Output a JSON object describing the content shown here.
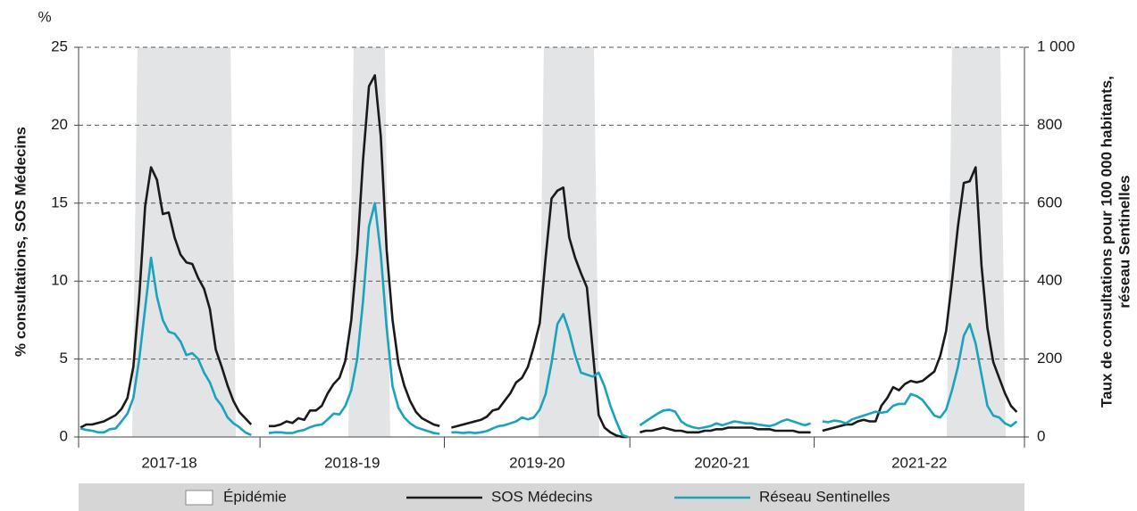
{
  "chart_data": {
    "type": "line",
    "y_unit": "%",
    "ylabel": "% consultations,  SOS Médecins",
    "y2label": [
      "Taux de consultations  pour 100 000 habitants,",
      "réseau Sentinelles"
    ],
    "ylim": [
      0,
      25
    ],
    "yticks": [
      0,
      5,
      10,
      15,
      20,
      25
    ],
    "y2lim": [
      0,
      1000
    ],
    "y2ticks": [
      0,
      200,
      400,
      600,
      800,
      {
        "value": 1000,
        "label": "1 000"
      }
    ],
    "grid": true,
    "xlim": [
      -0.3,
      160.3
    ],
    "seasons": [
      "2017-18",
      "2018-19",
      "2019-20",
      "2020-21",
      "2021-22"
    ],
    "season_edges": [
      -0.3,
      30.5,
      61.8,
      93.3,
      124.6,
      160.3
    ],
    "epidemic_label": "Épidémie",
    "epidemic_color": "#e3e4e6",
    "epidemics": [
      [
        9.7,
        25.5
      ],
      [
        46.4,
        51.7
      ],
      [
        78.7,
        87.2
      ],
      [
        148,
        156.2
      ]
    ],
    "x": [
      0,
      1,
      2,
      3,
      4,
      5,
      6,
      7,
      8,
      9,
      10,
      11,
      12,
      13,
      14,
      15,
      16,
      17,
      18,
      19,
      20,
      21,
      22,
      23,
      24,
      25,
      26,
      27,
      28,
      29,
      30,
      31,
      32,
      33,
      34,
      35,
      36,
      37,
      38,
      39,
      40,
      41,
      42,
      43,
      44,
      45,
      46,
      47,
      48,
      49,
      50,
      51,
      52,
      53,
      54,
      55,
      56,
      57,
      58,
      59,
      60,
      61,
      62,
      63,
      64,
      65,
      66,
      67,
      68,
      69,
      70,
      71,
      72,
      73,
      74,
      75,
      76,
      77,
      78,
      79,
      80,
      81,
      82,
      83,
      84,
      85,
      86,
      87,
      88,
      89,
      90,
      91,
      92,
      93,
      94,
      95,
      96,
      97,
      98,
      99,
      100,
      101,
      102,
      103,
      104,
      105,
      106,
      107,
      108,
      109,
      110,
      111,
      112,
      113,
      114,
      115,
      116,
      117,
      118,
      119,
      120,
      121,
      122,
      123,
      124,
      125,
      126,
      127,
      128,
      129,
      130,
      131,
      132,
      133,
      134,
      135,
      136,
      137,
      138,
      139,
      140,
      141,
      142,
      143,
      144,
      145,
      146,
      147,
      148,
      149,
      150,
      151,
      152,
      153,
      154,
      155,
      156,
      157,
      158,
      159
    ],
    "series": [
      {
        "name": "SOS Médecins",
        "color": "#1a1a1a",
        "values": [
          0.6,
          0.8,
          0.8,
          0.9,
          1.0,
          1.2,
          1.4,
          1.8,
          2.5,
          4.5,
          9.0,
          14.8,
          17.3,
          16.5,
          14.3,
          14.4,
          12.8,
          11.7,
          11.2,
          11.1,
          10.2,
          9.5,
          8.2,
          5.6,
          4.5,
          3.3,
          2.3,
          1.6,
          1.2,
          0.8,
          null,
          null,
          0.7,
          0.7,
          0.8,
          1.0,
          0.9,
          1.2,
          1.1,
          1.7,
          1.7,
          2.0,
          2.8,
          3.4,
          3.8,
          4.9,
          7.5,
          11.8,
          17.8,
          22.5,
          23.2,
          19.3,
          12.0,
          7.5,
          4.7,
          3.3,
          2.3,
          1.6,
          1.2,
          1.0,
          0.8,
          0.7,
          null,
          0.6,
          0.7,
          0.8,
          0.9,
          1.0,
          1.1,
          1.3,
          1.7,
          1.8,
          2.3,
          2.8,
          3.5,
          3.8,
          4.5,
          5.8,
          7.3,
          11.5,
          15.3,
          15.8,
          16.0,
          12.8,
          11.5,
          10.5,
          9.6,
          5.5,
          1.4,
          0.6,
          0.3,
          0.1,
          0.0,
          0.0,
          null,
          0.3,
          0.4,
          0.4,
          0.5,
          0.6,
          0.5,
          0.4,
          0.4,
          0.3,
          0.3,
          0.3,
          0.4,
          0.4,
          0.5,
          0.5,
          0.6,
          0.6,
          0.6,
          0.6,
          0.6,
          0.5,
          0.5,
          0.5,
          0.4,
          0.4,
          0.4,
          0.4,
          0.3,
          0.3,
          0.3,
          null,
          0.4,
          0.5,
          0.6,
          0.7,
          0.8,
          0.8,
          1.0,
          1.1,
          1.0,
          1.0,
          2.0,
          2.5,
          3.2,
          3.0,
          3.4,
          3.6,
          3.5,
          3.6,
          3.9,
          4.2,
          5.2,
          6.8,
          10.0,
          13.5,
          16.3,
          16.4,
          17.3,
          11.0,
          7.0,
          4.8,
          3.8,
          2.8,
          2.0,
          1.6
        ]
      },
      {
        "name": "Réseau Sentinelles",
        "color": "#1aa3bd",
        "axis": "y2",
        "values": [
          22,
          18,
          16,
          12,
          12,
          20,
          22,
          40,
          60,
          100,
          200,
          330,
          460,
          360,
          300,
          270,
          265,
          245,
          210,
          215,
          200,
          165,
          140,
          100,
          80,
          50,
          35,
          25,
          12,
          5,
          null,
          null,
          10,
          12,
          12,
          10,
          10,
          15,
          18,
          25,
          30,
          32,
          45,
          60,
          58,
          80,
          120,
          200,
          350,
          540,
          600,
          470,
          280,
          130,
          75,
          50,
          35,
          25,
          20,
          15,
          10,
          8,
          null,
          12,
          12,
          10,
          12,
          10,
          12,
          15,
          22,
          28,
          30,
          35,
          40,
          50,
          45,
          50,
          70,
          110,
          190,
          290,
          315,
          270,
          210,
          165,
          160,
          155,
          165,
          130,
          80,
          40,
          5,
          0,
          null,
          30,
          40,
          50,
          60,
          68,
          70,
          65,
          40,
          30,
          25,
          22,
          25,
          28,
          35,
          30,
          35,
          40,
          38,
          35,
          35,
          32,
          30,
          28,
          32,
          40,
          45,
          40,
          35,
          30,
          35,
          null,
          40,
          38,
          42,
          40,
          35,
          45,
          50,
          55,
          60,
          65,
          62,
          65,
          80,
          85,
          85,
          110,
          105,
          95,
          75,
          55,
          50,
          70,
          120,
          180,
          260,
          290,
          240,
          160,
          80,
          55,
          50,
          35,
          28,
          40
        ]
      }
    ]
  }
}
